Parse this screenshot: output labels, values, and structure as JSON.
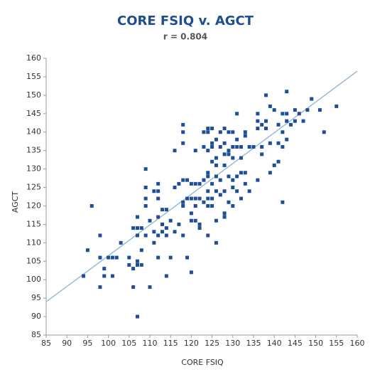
{
  "chart_data": {
    "type": "scatter",
    "title": "CORE FSIQ v. AGCT",
    "subtitle": "r = 0.804",
    "x_label": "CORE FSIQ",
    "y_label": "AGCT",
    "color": "#1f4e99",
    "trendline_color": "#9bbad6",
    "trendline": {
      "x": [
        85,
        160
      ],
      "y": [
        94,
        156.5
      ]
    },
    "xlim": [
      85,
      160
    ],
    "ylim": [
      85,
      160
    ],
    "xticks": [
      85,
      90,
      95,
      100,
      105,
      110,
      115,
      120,
      125,
      130,
      135,
      140,
      145,
      150,
      155,
      160
    ],
    "yticks": [
      85,
      90,
      95,
      100,
      105,
      110,
      115,
      120,
      125,
      130,
      135,
      140,
      145,
      150,
      155,
      160
    ],
    "x": [
      94,
      95,
      96,
      98,
      98,
      98,
      99,
      99,
      100,
      101,
      101,
      102,
      103,
      105,
      105,
      106,
      106,
      106,
      107,
      107,
      107,
      107,
      107,
      107,
      108,
      108,
      108,
      109,
      109,
      109,
      109,
      109,
      110,
      110,
      111,
      111,
      111,
      112,
      112,
      112,
      112,
      112,
      112,
      113,
      113,
      113,
      114,
      114,
      114,
      114,
      115,
      115,
      116,
      116,
      116,
      117,
      117,
      118,
      118,
      118,
      118,
      118,
      118,
      118,
      119,
      119,
      119,
      120,
      120,
      120,
      120,
      120,
      121,
      121,
      121,
      121,
      121,
      122,
      122,
      122,
      122,
      123,
      123,
      123,
      123,
      124,
      124,
      124,
      124,
      124,
      124,
      124,
      124,
      124,
      125,
      125,
      125,
      125,
      125,
      125,
      125,
      126,
      126,
      126,
      126,
      126,
      126,
      126,
      127,
      127,
      127,
      127,
      128,
      128,
      128,
      128,
      128,
      128,
      128,
      129,
      129,
      129,
      129,
      129,
      130,
      130,
      130,
      130,
      130,
      130,
      131,
      131,
      131,
      131,
      131,
      132,
      132,
      132,
      132,
      133,
      133,
      133,
      133,
      134,
      134,
      135,
      136,
      136,
      136,
      136,
      137,
      137,
      137,
      138,
      138,
      138,
      139,
      139,
      139,
      140,
      140,
      141,
      141,
      141,
      142,
      142,
      142,
      142,
      143,
      143,
      143,
      143,
      144,
      145,
      145,
      146,
      147,
      148,
      149,
      151,
      152,
      155
    ],
    "y": [
      101,
      108,
      120,
      112,
      106,
      98,
      103,
      101,
      106,
      106,
      101,
      106,
      110,
      106,
      104,
      103,
      98,
      114,
      114,
      117,
      112,
      105,
      104,
      90,
      104,
      108,
      114,
      130,
      125,
      122,
      120,
      112,
      116,
      98,
      124,
      113,
      110,
      126,
      124,
      122,
      117,
      112,
      106,
      119,
      115,
      113,
      119,
      114,
      112,
      101,
      106,
      116,
      135,
      125,
      113,
      126,
      115,
      142,
      140,
      137,
      127,
      121,
      120,
      112,
      127,
      106,
      122,
      126,
      122,
      118,
      116,
      102,
      135,
      126,
      122,
      120,
      116,
      126,
      122,
      115,
      114,
      140,
      136,
      127,
      121,
      141,
      140,
      135,
      129,
      128,
      124,
      122,
      120,
      112,
      141,
      137,
      136,
      132,
      126,
      122,
      120,
      138,
      133,
      131,
      128,
      124,
      116,
      110,
      140,
      136,
      127,
      123,
      141,
      137,
      134,
      131,
      124,
      118,
      117,
      140,
      135,
      134,
      128,
      121,
      140,
      136,
      133,
      127,
      125,
      120,
      145,
      138,
      136,
      128,
      124,
      136,
      133,
      129,
      122,
      140,
      139,
      129,
      126,
      136,
      124,
      136,
      145,
      143,
      141,
      127,
      142,
      136,
      134,
      150,
      143,
      141,
      147,
      137,
      129,
      146,
      131,
      142,
      137,
      132,
      145,
      140,
      136,
      121,
      151,
      145,
      143,
      138,
      142,
      146,
      143,
      145,
      143,
      146,
      149,
      146,
      140,
      147
    ]
  }
}
